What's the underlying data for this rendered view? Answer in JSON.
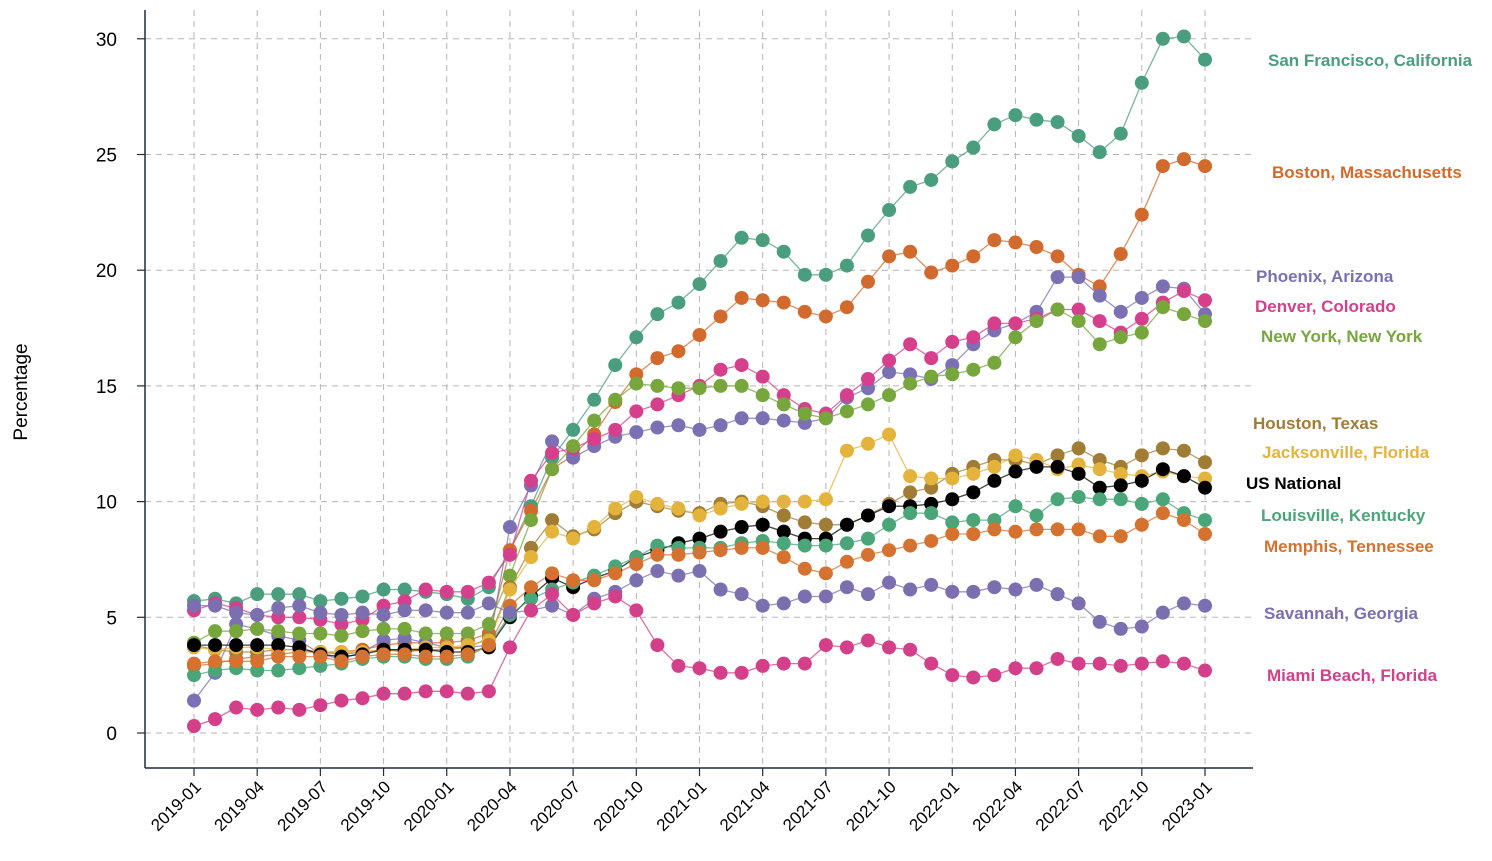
{
  "chart_data": {
    "type": "line",
    "title": "",
    "xlabel": "",
    "ylabel": "Percentage",
    "ylim": [
      -1.5,
      31.5
    ],
    "yticks": [
      0,
      5,
      10,
      15,
      20,
      25,
      30
    ],
    "x": [
      "2019-01",
      "2019-02",
      "2019-03",
      "2019-04",
      "2019-05",
      "2019-06",
      "2019-07",
      "2019-08",
      "2019-09",
      "2019-10",
      "2019-11",
      "2019-12",
      "2020-01",
      "2020-02",
      "2020-03",
      "2020-04",
      "2020-05",
      "2020-06",
      "2020-07",
      "2020-08",
      "2020-09",
      "2020-10",
      "2020-11",
      "2020-12",
      "2021-01",
      "2021-02",
      "2021-03",
      "2021-04",
      "2021-05",
      "2021-06",
      "2021-07",
      "2021-08",
      "2021-09",
      "2021-10",
      "2021-11",
      "2021-12",
      "2022-01",
      "2022-02",
      "2022-03",
      "2022-04",
      "2022-05",
      "2022-06",
      "2022-07",
      "2022-08",
      "2022-09",
      "2022-10",
      "2022-11",
      "2022-12",
      "2023-01"
    ],
    "xticks": [
      "2019-01",
      "2019-04",
      "2019-07",
      "2019-10",
      "2020-01",
      "2020-04",
      "2020-07",
      "2020-10",
      "2021-01",
      "2021-04",
      "2021-07",
      "2021-10",
      "2022-01",
      "2022-04",
      "2022-07",
      "2022-10",
      "2023-01"
    ],
    "grid": true,
    "legend": "right (direct labels)",
    "series": [
      {
        "name": "San Francisco, California",
        "color": "#4a9e7e",
        "values": [
          5.7,
          5.8,
          5.6,
          6.0,
          6.0,
          6.0,
          5.7,
          5.8,
          5.9,
          6.2,
          6.2,
          6.1,
          6.0,
          5.8,
          6.3,
          7.9,
          9.8,
          11.9,
          13.1,
          14.4,
          15.9,
          17.1,
          18.1,
          18.6,
          19.4,
          20.4,
          21.4,
          21.3,
          20.8,
          19.8,
          19.8,
          20.2,
          21.5,
          22.6,
          23.6,
          23.9,
          24.7,
          25.3,
          26.3,
          26.7,
          26.5,
          26.4,
          25.8,
          25.1,
          25.9,
          28.1,
          30.0,
          30.1,
          29.1
        ]
      },
      {
        "name": "Boston, Massachusetts",
        "color": "#d26a2e",
        "values": [
          2.9,
          3.0,
          3.2,
          3.3,
          3.4,
          3.5,
          3.5,
          3.5,
          3.6,
          3.8,
          3.9,
          3.9,
          3.9,
          4.0,
          4.3,
          7.9,
          9.6,
          11.4,
          12.0,
          12.9,
          14.3,
          15.5,
          16.2,
          16.5,
          17.2,
          18.0,
          18.8,
          18.7,
          18.6,
          18.2,
          18.0,
          18.4,
          19.5,
          20.6,
          20.8,
          19.9,
          20.2,
          20.6,
          21.3,
          21.2,
          21.0,
          20.6,
          19.8,
          19.3,
          20.7,
          22.4,
          24.5,
          24.8,
          24.5
        ]
      },
      {
        "name": "Phoenix, Arizona",
        "color": "#7b70b4",
        "values": [
          1.4,
          2.6,
          4.7,
          4.5,
          4.2,
          4.0,
          3.4,
          3.2,
          3.5,
          4.0,
          4.1,
          3.9,
          3.7,
          3.7,
          3.8,
          8.9,
          10.7,
          12.6,
          11.9,
          12.4,
          12.8,
          13.0,
          13.2,
          13.3,
          13.1,
          13.3,
          13.6,
          13.6,
          13.5,
          13.4,
          13.6,
          14.5,
          14.9,
          15.6,
          15.5,
          15.3,
          15.9,
          16.8,
          17.4,
          17.7,
          18.2,
          19.7,
          19.7,
          18.9,
          18.2,
          18.8,
          19.3,
          19.2,
          18.1
        ]
      },
      {
        "name": "Denver, Colorado",
        "color": "#d63f8b",
        "values": [
          5.3,
          5.6,
          5.4,
          5.1,
          5.0,
          5.0,
          4.9,
          4.7,
          4.9,
          5.5,
          5.7,
          6.2,
          6.1,
          6.1,
          6.5,
          7.7,
          10.9,
          12.1,
          12.3,
          12.7,
          13.1,
          13.9,
          14.2,
          14.6,
          15.0,
          15.7,
          15.9,
          15.4,
          14.6,
          14.0,
          13.8,
          14.6,
          15.3,
          16.1,
          16.8,
          16.2,
          16.9,
          17.1,
          17.7,
          17.7,
          17.9,
          18.3,
          18.3,
          17.8,
          17.3,
          17.9,
          18.6,
          19.1,
          18.7
        ]
      },
      {
        "name": "New York, New York",
        "color": "#76a63c",
        "values": [
          3.9,
          4.4,
          4.4,
          4.5,
          4.4,
          4.3,
          4.3,
          4.2,
          4.4,
          4.5,
          4.5,
          4.3,
          4.3,
          4.3,
          4.7,
          6.8,
          9.2,
          11.4,
          12.4,
          13.5,
          14.4,
          15.1,
          15.0,
          14.9,
          14.9,
          15.0,
          15.0,
          14.6,
          14.2,
          13.8,
          13.6,
          13.9,
          14.2,
          14.6,
          15.1,
          15.4,
          15.5,
          15.7,
          16.0,
          17.1,
          17.8,
          18.3,
          17.8,
          16.8,
          17.1,
          17.3,
          18.4,
          18.1,
          17.8
        ]
      },
      {
        "name": "Houston, Texas",
        "color": "#a07c35",
        "values": [
          3.8,
          3.6,
          3.5,
          3.5,
          3.6,
          3.6,
          3.5,
          3.4,
          3.5,
          3.6,
          3.5,
          3.6,
          3.6,
          3.7,
          4.1,
          6.3,
          8.0,
          9.2,
          8.5,
          8.8,
          9.5,
          10.0,
          9.8,
          9.6,
          9.5,
          9.9,
          10.0,
          9.8,
          9.4,
          9.1,
          9.0,
          9.0,
          9.4,
          9.9,
          10.4,
          10.6,
          11.2,
          11.5,
          11.8,
          11.8,
          11.6,
          12.0,
          12.3,
          11.8,
          11.5,
          12.0,
          12.3,
          12.2,
          11.7
        ]
      },
      {
        "name": "Jacksonville, Florida",
        "color": "#e3b33c",
        "values": [
          3.7,
          3.6,
          3.7,
          3.7,
          3.6,
          3.6,
          3.5,
          3.5,
          3.5,
          3.6,
          3.6,
          3.7,
          3.7,
          3.8,
          4.0,
          6.2,
          7.6,
          8.7,
          8.4,
          8.9,
          9.7,
          10.2,
          9.9,
          9.7,
          9.4,
          9.7,
          9.9,
          10.0,
          10.0,
          10.0,
          10.1,
          12.2,
          12.5,
          12.9,
          11.1,
          11.0,
          11.0,
          11.2,
          11.5,
          12.0,
          11.8,
          11.4,
          11.6,
          11.4,
          11.2,
          11.1,
          11.3,
          11.1,
          11.0
        ]
      },
      {
        "name": "US National",
        "color": "#000000",
        "values": [
          3.8,
          3.8,
          3.8,
          3.8,
          3.8,
          3.7,
          3.4,
          3.3,
          3.4,
          3.6,
          3.6,
          3.6,
          3.5,
          3.5,
          3.7,
          5.0,
          5.9,
          6.7,
          6.3,
          6.7,
          7.0,
          7.6,
          7.9,
          8.2,
          8.4,
          8.7,
          8.9,
          9.0,
          8.7,
          8.4,
          8.4,
          9.0,
          9.4,
          9.8,
          9.8,
          9.9,
          10.1,
          10.4,
          10.9,
          11.3,
          11.5,
          11.5,
          11.2,
          10.6,
          10.7,
          10.9,
          11.4,
          11.1,
          10.6
        ]
      },
      {
        "name": "Louisville, Kentucky",
        "color": "#4aa678",
        "values": [
          2.5,
          2.7,
          2.8,
          2.7,
          2.7,
          2.8,
          2.9,
          3.0,
          3.2,
          3.3,
          3.3,
          3.2,
          3.2,
          3.3,
          3.8,
          5.1,
          5.8,
          6.2,
          6.5,
          6.8,
          7.2,
          7.6,
          8.1,
          8.0,
          8.0,
          8.0,
          8.2,
          8.3,
          8.2,
          8.1,
          8.1,
          8.2,
          8.4,
          9.0,
          9.5,
          9.5,
          9.1,
          9.2,
          9.2,
          9.8,
          9.4,
          10.1,
          10.2,
          10.1,
          10.1,
          9.9,
          10.1,
          9.5,
          9.2
        ]
      },
      {
        "name": "Memphis, Tennessee",
        "color": "#d6722f",
        "values": [
          3.0,
          3.1,
          3.1,
          3.1,
          3.3,
          3.3,
          3.3,
          3.1,
          3.3,
          3.4,
          3.4,
          3.3,
          3.3,
          3.4,
          3.8,
          5.5,
          6.3,
          6.9,
          6.6,
          6.6,
          6.9,
          7.3,
          7.7,
          7.7,
          7.8,
          7.9,
          8.0,
          8.0,
          7.6,
          7.1,
          6.9,
          7.4,
          7.7,
          7.9,
          8.1,
          8.3,
          8.6,
          8.6,
          8.8,
          8.7,
          8.8,
          8.8,
          8.8,
          8.5,
          8.5,
          9.0,
          9.5,
          9.2,
          8.6
        ]
      },
      {
        "name": "Savannah, Georgia",
        "color": "#7b6fb0",
        "values": [
          5.5,
          5.5,
          5.2,
          5.1,
          5.4,
          5.5,
          5.2,
          5.1,
          5.2,
          5.1,
          5.3,
          5.3,
          5.2,
          5.2,
          5.6,
          5.2,
          5.3,
          5.5,
          5.1,
          5.8,
          6.1,
          6.6,
          7.0,
          6.8,
          7.0,
          6.2,
          6.0,
          5.5,
          5.6,
          5.9,
          5.9,
          6.3,
          6.0,
          6.5,
          6.2,
          6.4,
          6.1,
          6.1,
          6.3,
          6.2,
          6.4,
          6.0,
          5.6,
          4.8,
          4.5,
          4.6,
          5.2,
          5.6,
          5.5
        ]
      },
      {
        "name": "Miami Beach, Florida",
        "color": "#d43f8a",
        "values": [
          0.3,
          0.6,
          1.1,
          1.0,
          1.1,
          1.0,
          1.2,
          1.4,
          1.5,
          1.7,
          1.7,
          1.8,
          1.8,
          1.7,
          1.8,
          3.7,
          5.3,
          6.0,
          5.1,
          5.6,
          5.9,
          5.3,
          3.8,
          2.9,
          2.8,
          2.6,
          2.6,
          2.9,
          3.0,
          3.0,
          3.8,
          3.7,
          4.0,
          3.7,
          3.6,
          3.0,
          2.5,
          2.4,
          2.5,
          2.8,
          2.8,
          3.2,
          3.0,
          3.0,
          2.9,
          3.0,
          3.1,
          3.0,
          2.7
        ]
      }
    ]
  }
}
